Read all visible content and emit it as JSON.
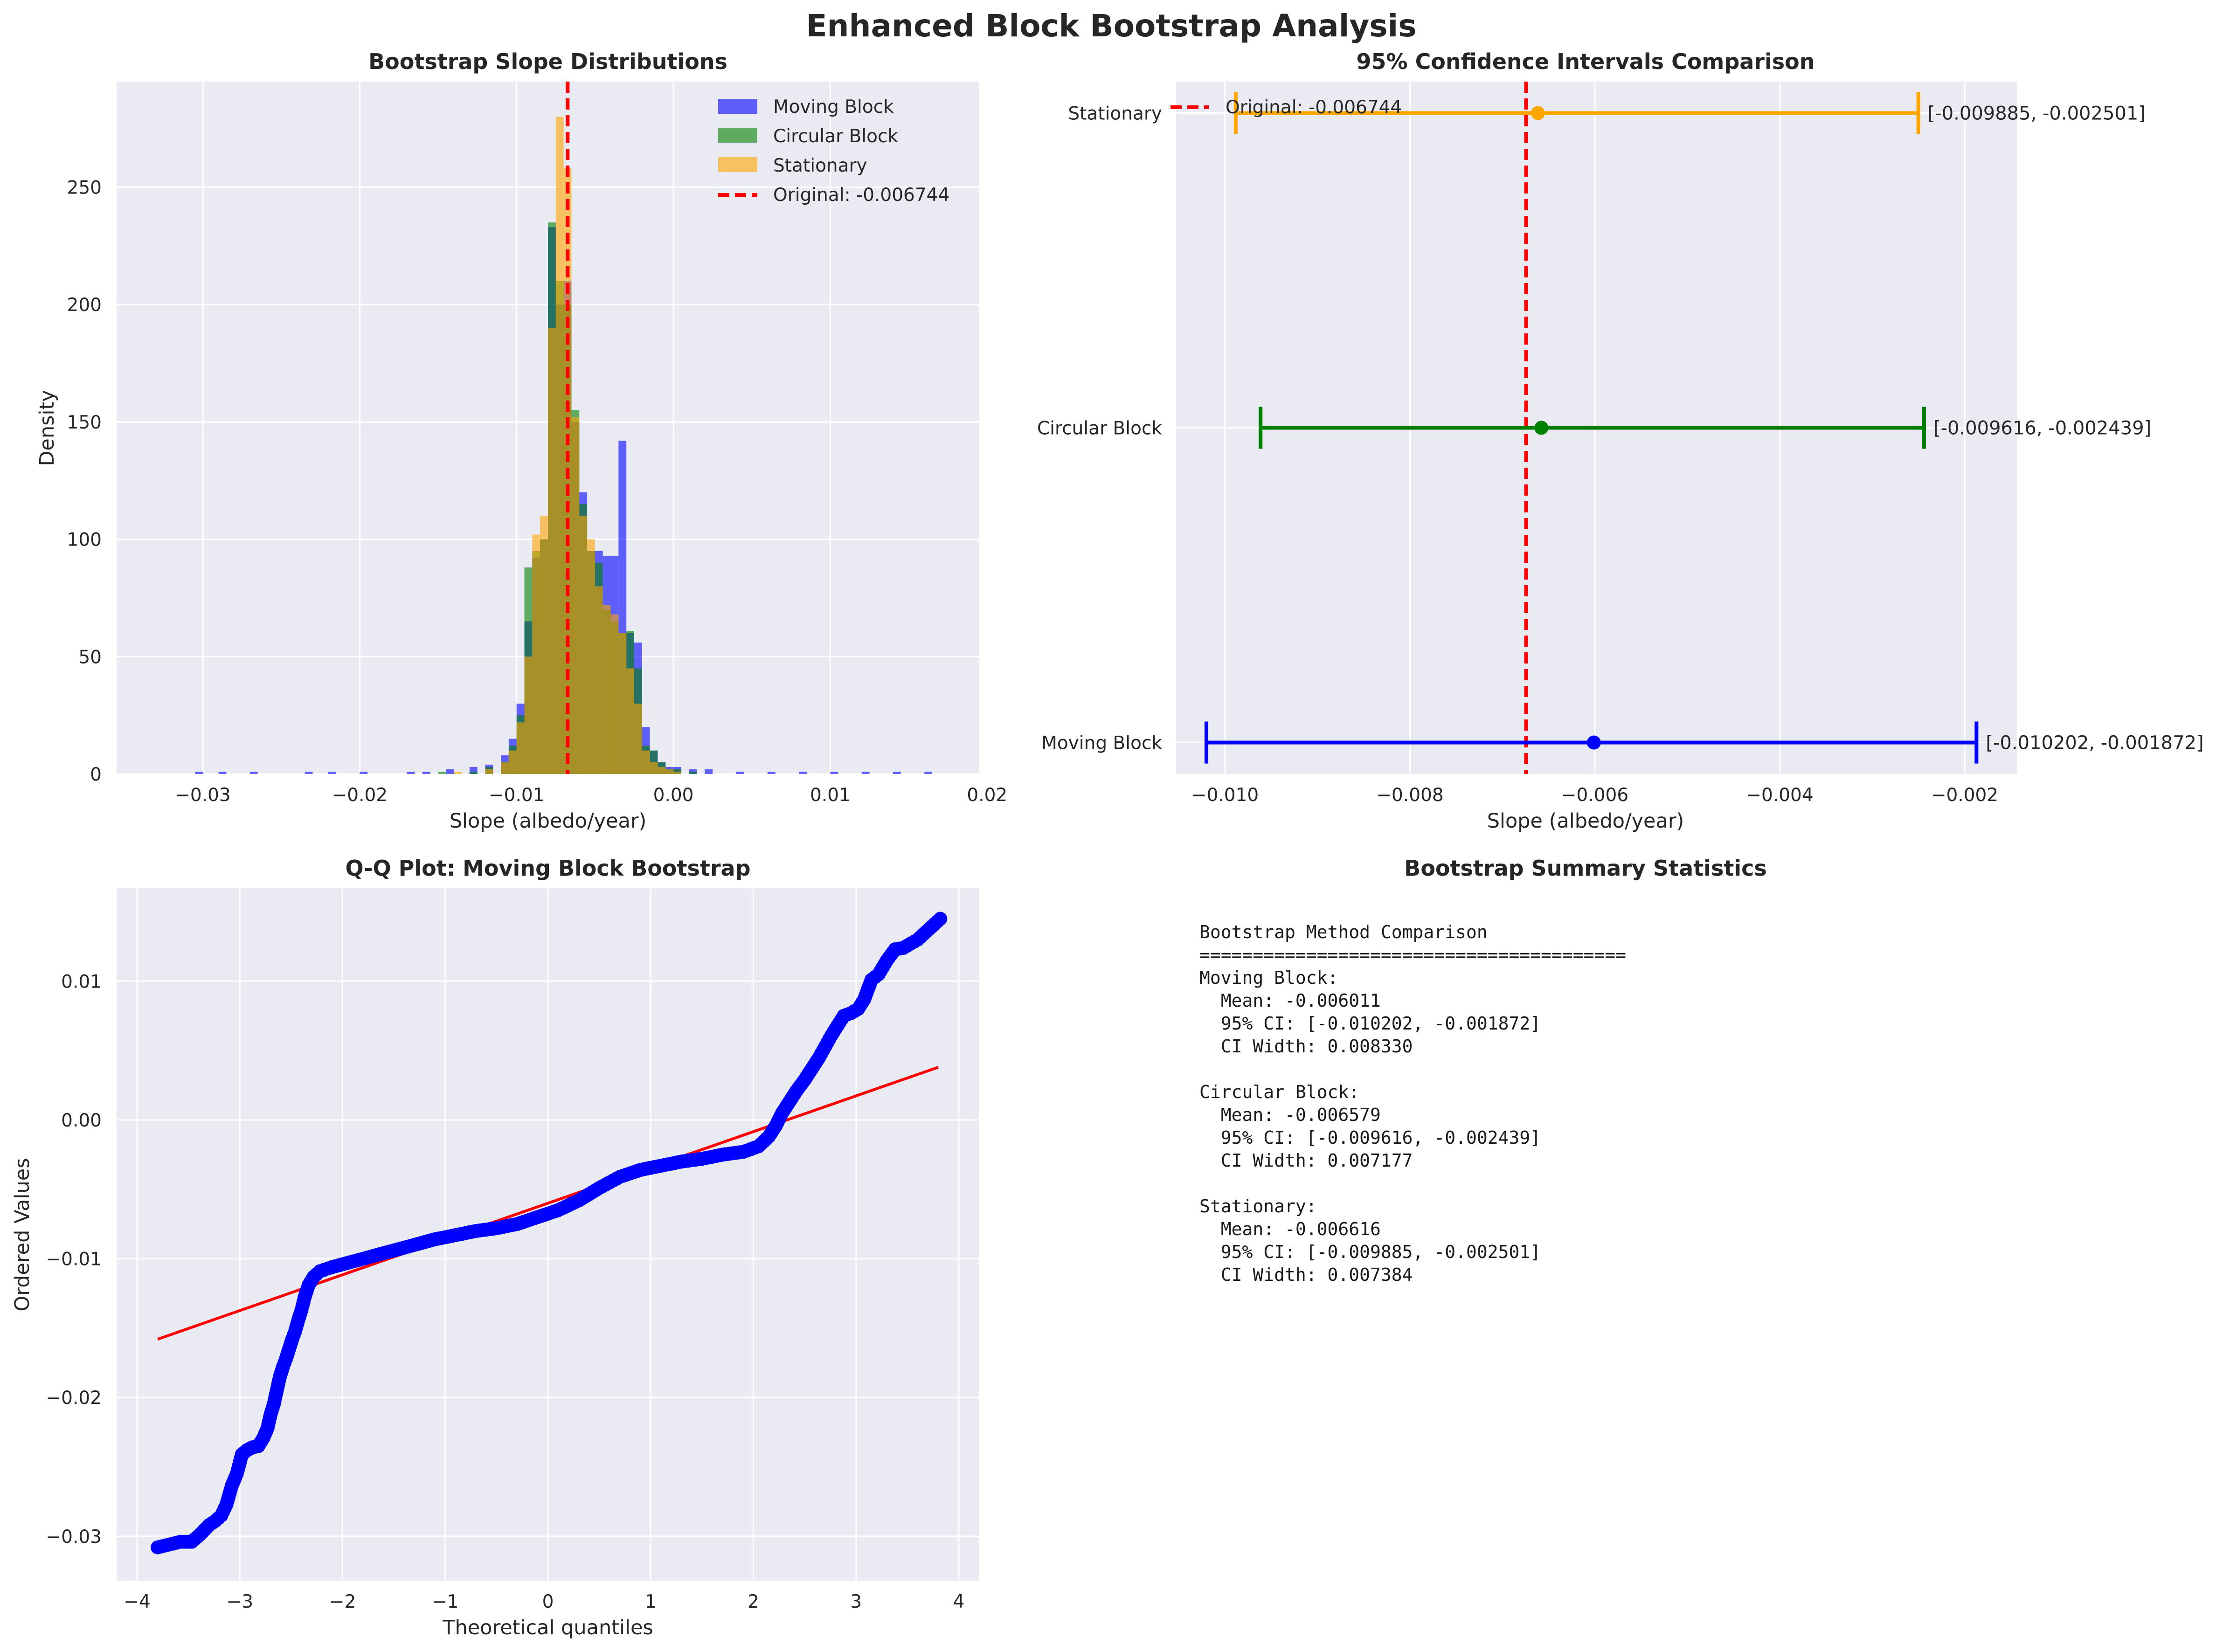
{
  "figure_title": "Enhanced Block Bootstrap Analysis",
  "colors": {
    "panel_bg": "#EAEAF2",
    "grid": "#FFFFFF",
    "moving": "#0000FF",
    "circular": "#008000",
    "stationary": "#FFA500",
    "original": "#FF0000"
  },
  "chart_data": [
    {
      "type": "histogram",
      "title": "Bootstrap Slope Distributions",
      "xlabel": "Slope (albedo/year)",
      "ylabel": "Density",
      "xlim": [
        -0.0355,
        0.0195
      ],
      "ylim": [
        0,
        295
      ],
      "xticks": [
        -0.03,
        -0.02,
        -0.01,
        0.0,
        0.01,
        0.02
      ],
      "xtick_labels": [
        "−0.03",
        "−0.02",
        "−0.01",
        "0.00",
        "0.01",
        "0.02"
      ],
      "yticks": [
        0,
        50,
        100,
        150,
        200,
        250
      ],
      "ytick_labels": [
        "0",
        "50",
        "100",
        "150",
        "200",
        "250"
      ],
      "bin_width": 0.0005,
      "legend_position": "upper right",
      "reference_line": {
        "x": -0.006744,
        "label": "Original: -0.006744"
      },
      "series": [
        {
          "name": "Moving Block",
          "color_key": "moving",
          "bins": [
            [
              -0.0305,
              1
            ],
            [
              -0.029,
              1
            ],
            [
              -0.027,
              1
            ],
            [
              -0.0235,
              1
            ],
            [
              -0.022,
              1
            ],
            [
              -0.02,
              1
            ],
            [
              -0.017,
              1
            ],
            [
              -0.016,
              1
            ],
            [
              -0.0145,
              2
            ],
            [
              -0.013,
              3
            ],
            [
              -0.012,
              4
            ],
            [
              -0.011,
              8
            ],
            [
              -0.0105,
              15
            ],
            [
              -0.01,
              30
            ],
            [
              -0.0095,
              65
            ],
            [
              -0.009,
              92
            ],
            [
              -0.0085,
              100
            ],
            [
              -0.008,
              233
            ],
            [
              -0.0075,
              200
            ],
            [
              -0.007,
              210
            ],
            [
              -0.0065,
              150
            ],
            [
              -0.006,
              120
            ],
            [
              -0.0055,
              95
            ],
            [
              -0.005,
              95
            ],
            [
              -0.0045,
              93
            ],
            [
              -0.004,
              93
            ],
            [
              -0.0035,
              142
            ],
            [
              -0.003,
              60
            ],
            [
              -0.0025,
              56
            ],
            [
              -0.002,
              20
            ],
            [
              -0.0015,
              10
            ],
            [
              -0.001,
              5
            ],
            [
              -0.0005,
              3
            ],
            [
              0.0,
              3
            ],
            [
              0.001,
              2
            ],
            [
              0.002,
              2
            ],
            [
              0.004,
              1
            ],
            [
              0.006,
              1
            ],
            [
              0.008,
              1
            ],
            [
              0.01,
              1
            ],
            [
              0.012,
              1
            ],
            [
              0.014,
              1
            ],
            [
              0.016,
              1
            ]
          ]
        },
        {
          "name": "Circular Block",
          "color_key": "circular",
          "bins": [
            [
              -0.015,
              1
            ],
            [
              -0.013,
              1
            ],
            [
              -0.012,
              3
            ],
            [
              -0.011,
              5
            ],
            [
              -0.0105,
              12
            ],
            [
              -0.01,
              25
            ],
            [
              -0.0095,
              88
            ],
            [
              -0.009,
              95
            ],
            [
              -0.0085,
              100
            ],
            [
              -0.008,
              235
            ],
            [
              -0.0075,
              210
            ],
            [
              -0.007,
              200
            ],
            [
              -0.0065,
              155
            ],
            [
              -0.006,
              115
            ],
            [
              -0.0055,
              95
            ],
            [
              -0.005,
              90
            ],
            [
              -0.0045,
              70
            ],
            [
              -0.004,
              65
            ],
            [
              -0.0035,
              60
            ],
            [
              -0.003,
              61
            ],
            [
              -0.0025,
              45
            ],
            [
              -0.002,
              12
            ],
            [
              -0.0015,
              10
            ],
            [
              -0.001,
              5
            ],
            [
              -0.0005,
              2
            ],
            [
              0.0,
              2
            ],
            [
              0.001,
              1
            ]
          ]
        },
        {
          "name": "Stationary",
          "color_key": "stationary",
          "bins": [
            [
              -0.014,
              1
            ],
            [
              -0.012,
              2
            ],
            [
              -0.011,
              5
            ],
            [
              -0.0105,
              10
            ],
            [
              -0.01,
              22
            ],
            [
              -0.0095,
              50
            ],
            [
              -0.009,
              102
            ],
            [
              -0.0085,
              110
            ],
            [
              -0.008,
              190
            ],
            [
              -0.0075,
              280
            ],
            [
              -0.007,
              258
            ],
            [
              -0.0065,
              152
            ],
            [
              -0.006,
              110
            ],
            [
              -0.0055,
              100
            ],
            [
              -0.005,
              80
            ],
            [
              -0.0045,
              72
            ],
            [
              -0.004,
              68
            ],
            [
              -0.0035,
              60
            ],
            [
              -0.003,
              45
            ],
            [
              -0.0025,
              30
            ],
            [
              -0.002,
              10
            ],
            [
              -0.0015,
              5
            ],
            [
              -0.001,
              3
            ],
            [
              -0.0005,
              2
            ],
            [
              0.0,
              1
            ]
          ]
        }
      ]
    },
    {
      "type": "errorbar",
      "title": "95% Confidence Intervals Comparison",
      "xlabel": "Slope (albedo/year)",
      "xlim": [
        -0.01053,
        -0.00143
      ],
      "xticks": [
        -0.01,
        -0.008,
        -0.006,
        -0.004,
        -0.002
      ],
      "xtick_labels": [
        "−0.010",
        "−0.008",
        "−0.006",
        "−0.004",
        "−0.002"
      ],
      "categories": [
        "Moving Block",
        "Circular Block",
        "Stationary"
      ],
      "legend_position": "upper left",
      "reference_line": {
        "x": -0.006744,
        "label": "Original: -0.006744"
      },
      "intervals": [
        {
          "name": "Moving Block",
          "mean": -0.006011,
          "low": -0.010202,
          "high": -0.001872,
          "label": "[-0.010202, -0.001872]",
          "color_key": "moving"
        },
        {
          "name": "Circular Block",
          "mean": -0.006579,
          "low": -0.009616,
          "high": -0.002439,
          "label": "[-0.009616, -0.002439]",
          "color_key": "circular"
        },
        {
          "name": "Stationary",
          "mean": -0.006616,
          "low": -0.009885,
          "high": -0.002501,
          "label": "[-0.009885, -0.002501]",
          "color_key": "stationary"
        }
      ]
    },
    {
      "type": "scatter",
      "title": "Q-Q Plot: Moving Block Bootstrap",
      "xlabel": "Theoretical quantiles",
      "ylabel": "Ordered Values",
      "xlim": [
        -4.2,
        4.2
      ],
      "ylim": [
        -0.0332,
        0.0167
      ],
      "xticks": [
        -4,
        -3,
        -2,
        -1,
        0,
        1,
        2,
        3,
        4
      ],
      "xtick_labels": [
        "−4",
        "−3",
        "−2",
        "−1",
        "0",
        "1",
        "2",
        "3",
        "4"
      ],
      "yticks": [
        -0.03,
        -0.02,
        -0.01,
        0.0,
        0.01
      ],
      "ytick_labels": [
        "−0.03",
        "−0.02",
        "−0.01",
        "0.00",
        "0.01"
      ],
      "fit_line": {
        "x": [
          -3.8,
          3.8
        ],
        "y": [
          -0.0158,
          0.0038
        ]
      },
      "points": [
        [
          -3.8,
          -0.0308
        ],
        [
          -3.58,
          -0.0304
        ],
        [
          -3.47,
          -0.0304
        ],
        [
          -3.39,
          -0.0299
        ],
        [
          -3.3,
          -0.0292
        ],
        [
          -3.24,
          -0.0289
        ],
        [
          -3.18,
          -0.0285
        ],
        [
          -3.13,
          -0.0277
        ],
        [
          -3.08,
          -0.0264
        ],
        [
          -3.03,
          -0.0255
        ],
        [
          -2.98,
          -0.0241
        ],
        [
          -2.93,
          -0.0238
        ],
        [
          -2.88,
          -0.0236
        ],
        [
          -2.82,
          -0.0235
        ],
        [
          -2.77,
          -0.0229
        ],
        [
          -2.73,
          -0.0222
        ],
        [
          -2.7,
          -0.0212
        ],
        [
          -2.67,
          -0.0205
        ],
        [
          -2.64,
          -0.0195
        ],
        [
          -2.61,
          -0.0185
        ],
        [
          -2.58,
          -0.0178
        ],
        [
          -2.55,
          -0.0172
        ],
        [
          -2.52,
          -0.0165
        ],
        [
          -2.49,
          -0.0158
        ],
        [
          -2.46,
          -0.0152
        ],
        [
          -2.43,
          -0.0144
        ],
        [
          -2.4,
          -0.0137
        ],
        [
          -2.37,
          -0.0128
        ],
        [
          -2.33,
          -0.0119
        ],
        [
          -2.28,
          -0.0113
        ],
        [
          -2.22,
          -0.0109
        ],
        [
          -2.1,
          -0.0106
        ],
        [
          -1.9,
          -0.0102
        ],
        [
          -1.7,
          -0.0098
        ],
        [
          -1.5,
          -0.0094
        ],
        [
          -1.3,
          -0.009
        ],
        [
          -1.1,
          -0.0086
        ],
        [
          -0.9,
          -0.0083
        ],
        [
          -0.7,
          -0.008
        ],
        [
          -0.5,
          -0.0078
        ],
        [
          -0.3,
          -0.0075
        ],
        [
          -0.1,
          -0.007
        ],
        [
          0.1,
          -0.0065
        ],
        [
          0.3,
          -0.0058
        ],
        [
          0.5,
          -0.0049
        ],
        [
          0.7,
          -0.0041
        ],
        [
          0.9,
          -0.0036
        ],
        [
          1.1,
          -0.0033
        ],
        [
          1.3,
          -0.003
        ],
        [
          1.5,
          -0.0028
        ],
        [
          1.7,
          -0.0025
        ],
        [
          1.9,
          -0.0023
        ],
        [
          2.05,
          -0.0019
        ],
        [
          2.15,
          -0.0012
        ],
        [
          2.22,
          -0.0004
        ],
        [
          2.28,
          0.0005
        ],
        [
          2.35,
          0.0013
        ],
        [
          2.42,
          0.0021
        ],
        [
          2.5,
          0.0029
        ],
        [
          2.57,
          0.0037
        ],
        [
          2.64,
          0.0045
        ],
        [
          2.7,
          0.0053
        ],
        [
          2.76,
          0.0061
        ],
        [
          2.82,
          0.0068
        ],
        [
          2.88,
          0.0075
        ],
        [
          2.95,
          0.0077
        ],
        [
          3.02,
          0.008
        ],
        [
          3.08,
          0.0087
        ],
        [
          3.15,
          0.0101
        ],
        [
          3.22,
          0.0105
        ],
        [
          3.3,
          0.0115
        ],
        [
          3.38,
          0.0123
        ],
        [
          3.46,
          0.0124
        ],
        [
          3.6,
          0.013
        ],
        [
          3.82,
          0.0145
        ]
      ]
    }
  ],
  "summary": {
    "title": "Bootstrap Summary Statistics",
    "lines": [
      "Bootstrap Method Comparison",
      "========================================",
      "Moving Block:",
      "  Mean: -0.006011",
      "  95% CI: [-0.010202, -0.001872]",
      "  CI Width: 0.008330",
      "",
      "Circular Block:",
      "  Mean: -0.006579",
      "  95% CI: [-0.009616, -0.002439]",
      "  CI Width: 0.007177",
      "",
      "Stationary:",
      "  Mean: -0.006616",
      "  95% CI: [-0.009885, -0.002501]",
      "  CI Width: 0.007384"
    ]
  }
}
